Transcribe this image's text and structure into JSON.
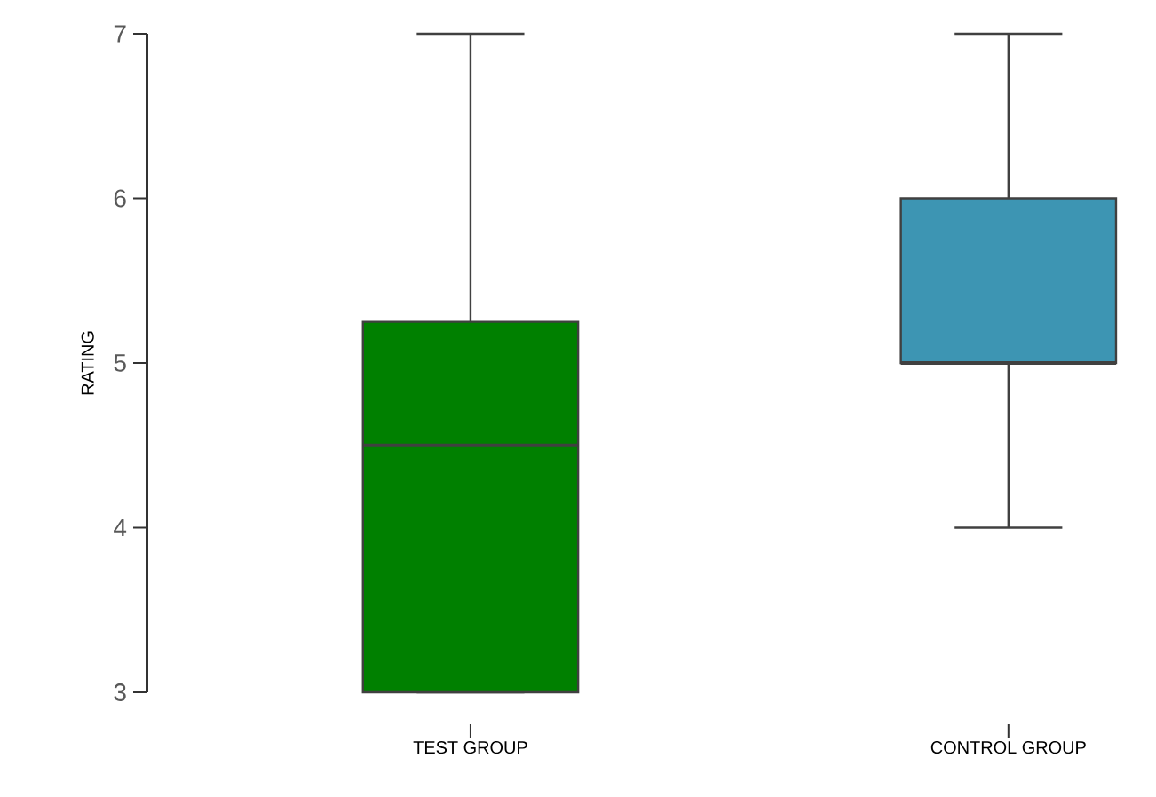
{
  "chart_data": {
    "type": "box",
    "ylabel": "RATING",
    "categories": [
      "TEST GROUP",
      "CONTROL GROUP"
    ],
    "boxes": [
      {
        "low": 3,
        "q1": 3,
        "median": 4.5,
        "q3": 5.25,
        "high": 7
      },
      {
        "low": 4,
        "q1": 5,
        "median": 5,
        "q3": 6,
        "high": 7
      }
    ],
    "colors": [
      "#008000",
      "#3d95b3"
    ],
    "ylim": [
      3,
      7
    ],
    "yticks": [
      3,
      4,
      5,
      6,
      7
    ]
  }
}
